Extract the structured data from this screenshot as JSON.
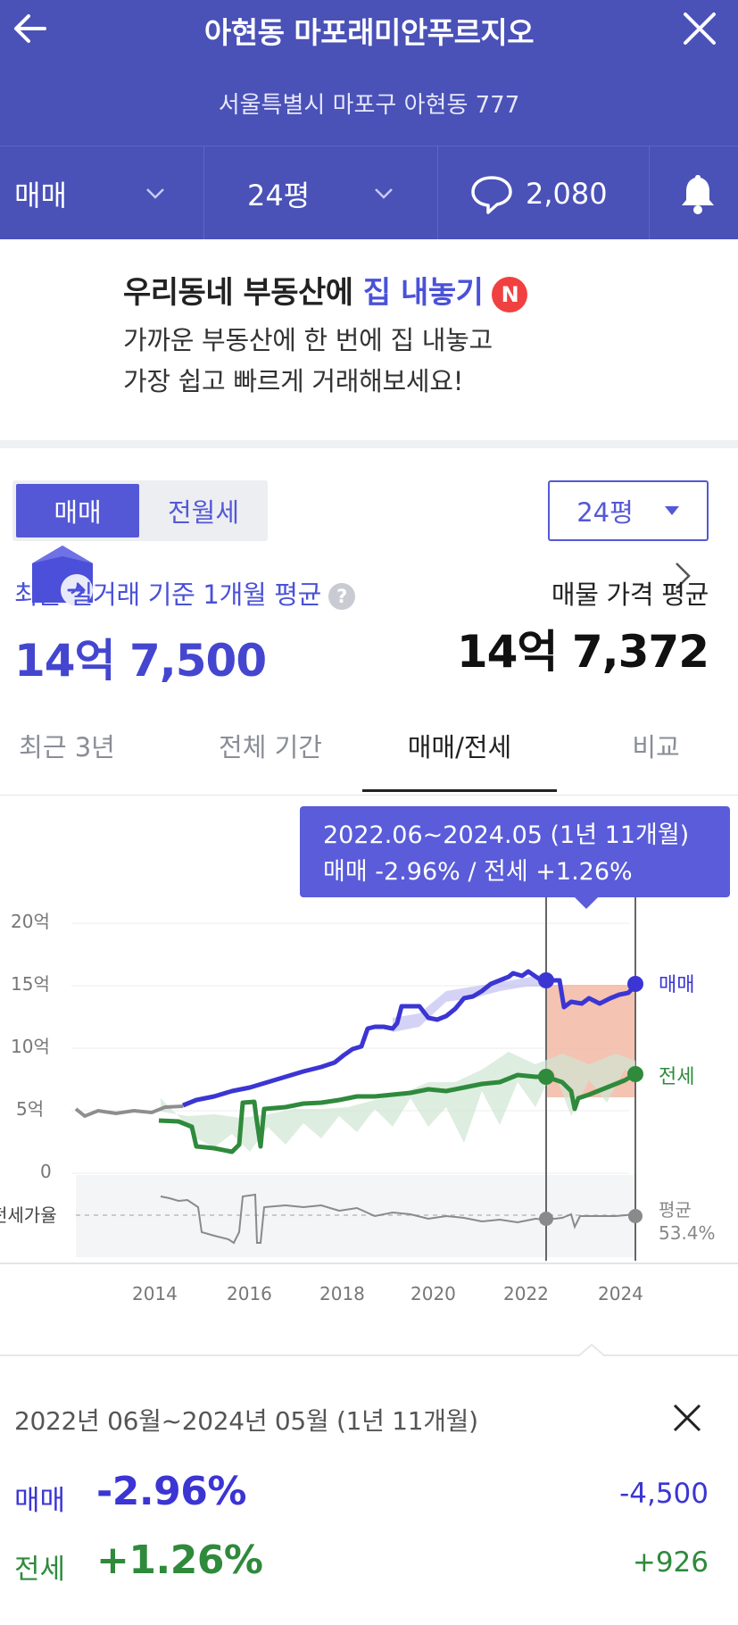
{
  "header": {
    "title": "아현동 마포래미안푸르지오",
    "address": "서울특별시 마포구 아현동 777",
    "trade_type": "매매",
    "size": "24평",
    "comment_count": "2,080"
  },
  "banner": {
    "title_prefix": "우리동네 부동산에",
    "title_highlight": "집 내놓기",
    "badge": "N",
    "desc_line1": "가까운 부동산에 한 번에 집 내놓고",
    "desc_line2": "가장 쉽고 빠르게 거래해보세요!"
  },
  "toggle": {
    "sale": "매매",
    "rent": "전월세"
  },
  "size_select": "24평",
  "summary": {
    "recent_label": "최근 실거래 기준 1개월 평균",
    "recent_price": "14억 7,500",
    "listing_label": "매물 가격 평균",
    "listing_price": "14억 7,372"
  },
  "tabs": [
    "최근 3년",
    "전체 기간",
    "매매/전세",
    "비교"
  ],
  "tooltip": {
    "line1": "2022.06~2024.05 (1년 11개월)",
    "line2": "매매 -2.96%  /  전세 +1.26%"
  },
  "chart_data": {
    "type": "line",
    "yticks": [
      "20억",
      "15억",
      "10억",
      "5억",
      "0"
    ],
    "xticks": [
      "2014",
      "2016",
      "2018",
      "2020",
      "2022",
      "2024"
    ],
    "lower_label": "전세가율",
    "avg_label": "평균",
    "avg_value": "53.4%",
    "series": [
      {
        "name": "매매",
        "color": "#3b35d4"
      },
      {
        "name": "전세",
        "color": "#2f8a3c"
      }
    ],
    "selection": {
      "start": "2022.06",
      "end": "2024.05"
    }
  },
  "bottom": {
    "period": "2022년 06월~2024년 05월 (1년 11개월)",
    "sale_label": "매매",
    "sale_pct": "-2.96%",
    "sale_diff": "-4,500",
    "jeonse_label": "전세",
    "jeonse_pct": "+1.26%",
    "jeonse_diff": "+926"
  },
  "colors": {
    "header_bg": "#4a51b7",
    "accent": "#4a51d8",
    "sale_line": "#3b35d4",
    "jeonse_line": "#2f8a3c",
    "badge": "#f04040"
  }
}
